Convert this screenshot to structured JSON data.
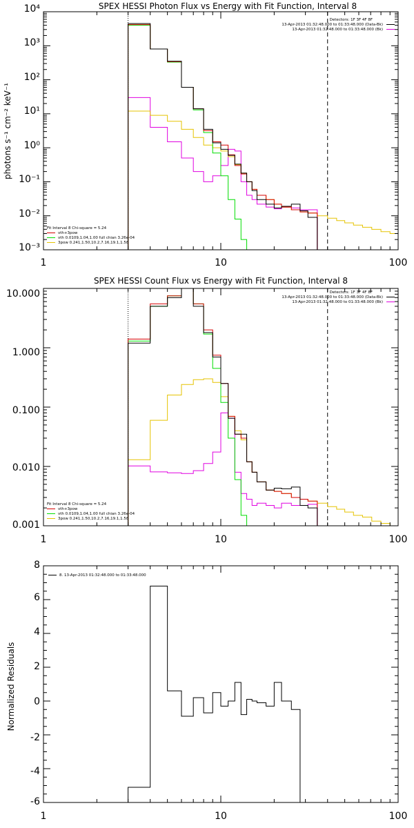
{
  "chart_data": [
    {
      "type": "line",
      "title": "SPEX HESSI Photon Flux vs Energy with Fit Function, Interval 8",
      "ylabel": "photons s⁻¹ cm⁻² keV⁻¹",
      "xscale": "log",
      "yscale": "log",
      "xlim": [
        1,
        100
      ],
      "ylim": [
        0.001,
        10000
      ],
      "xticks": [
        "1",
        "10",
        "100"
      ],
      "yticks": [
        "10⁻³",
        "10⁻²",
        "10⁻¹",
        "10⁰",
        "10¹",
        "10²",
        "10³",
        "10⁴"
      ],
      "vlines": [
        {
          "x": 3,
          "style": "dotted"
        },
        {
          "x": 40,
          "style": "dashed"
        }
      ],
      "header_lines": [
        "Detectors: 1F 3F 4F 8F",
        "13-Apr-2013 01:32:48.000 to 01:33:48.000 (Data-Bk)",
        "13-Apr-2013 01:32:48.000 to 01:33:48.000 (Bk)"
      ],
      "fit_lines": [
        "Fit Interval  8     Chi-square = 5.24",
        "vth+3pow",
        "vth 0.0109,1.04,1.00  full chian 3.26e-04",
        "3pow 0.241,1.50,10.2,7.16,19.1,1.58"
      ],
      "edges": [
        3,
        4,
        5,
        6,
        7,
        8,
        9,
        10,
        11,
        12,
        13,
        14,
        15,
        16,
        18,
        20,
        22,
        25,
        28,
        31,
        35,
        40,
        45,
        50,
        56,
        63,
        71,
        80,
        90,
        100
      ],
      "series": [
        {
          "name": "Data-Bk",
          "values": [
            4500,
            800,
            350,
            60,
            14,
            3.5,
            1.4,
            0.9,
            0.6,
            0.33,
            0.18,
            0.1,
            0.055,
            0.03,
            0.022,
            0.017,
            0.019,
            0.022,
            0.014,
            0.009
          ]
        },
        {
          "name": "vth+3pow",
          "values": [
            4200,
            800,
            340,
            60,
            14,
            3.2,
            1.5,
            1.2,
            0.62,
            0.3,
            0.17,
            0.1,
            0.06,
            0.04,
            0.03,
            0.022,
            0.018,
            0.015,
            0.013,
            0.012
          ]
        },
        {
          "name": "vth",
          "values": [
            4000,
            800,
            330,
            60,
            13,
            2.8,
            0.7,
            0.15,
            0.03,
            0.008,
            0.002
          ]
        },
        {
          "name": "3pow",
          "values": [
            12,
            9,
            6,
            3.5,
            2.0,
            1.2,
            1.0,
            0.8,
            0.55,
            0.32,
            0.18,
            0.1,
            0.06,
            0.04,
            0.03,
            0.022,
            0.018,
            0.015,
            0.013,
            0.012,
            0.01,
            0.0085,
            0.0072,
            0.0062,
            0.0053,
            0.0046,
            0.004,
            0.0034,
            0.003
          ]
        },
        {
          "name": "Bk",
          "values": [
            30,
            4,
            1.5,
            0.5,
            0.2,
            0.1,
            0.15,
            0.3,
            0.9,
            0.8,
            0.1,
            0.04,
            0.03,
            0.022,
            0.018,
            0.016,
            0.018,
            0.017,
            0.015,
            0.015
          ]
        }
      ],
      "colors": [
        "#000000",
        "#d40000",
        "#00dd00",
        "#e5c300",
        "#e000e0"
      ]
    },
    {
      "type": "line",
      "title": "SPEX HESSI Count Flux vs Energy with Fit Function, Interval 8",
      "xscale": "log",
      "yscale": "log",
      "xlim": [
        1,
        100
      ],
      "ylim": [
        0.001,
        10
      ],
      "xticks": [
        "1",
        "10",
        "100"
      ],
      "yticks": [
        "0.001",
        "0.010",
        "0.100",
        "1.000",
        "10.000"
      ],
      "vlines": [
        {
          "x": 3,
          "style": "dotted"
        },
        {
          "x": 40,
          "style": "dashed"
        }
      ],
      "header_lines": [
        "Detectors: 1F 3F 4F 8F",
        "13-Apr-2013 01:32:48.000 to 01:33:48.000 (Data-Bk)",
        "13-Apr-2013 01:32:48.000 to 01:33:48.000 (Bk)"
      ],
      "fit_lines": [
        "Fit Interval  8     Chi-square = 5.24",
        "vth+3pow",
        "vth 0.0109,1.04,1.00  full chian 3.26e-04",
        "3pow 0.241,1.50,10.2,7.16,19.1,1.58"
      ],
      "edges": [
        3,
        4,
        5,
        6,
        7,
        8,
        9,
        10,
        11,
        12,
        13,
        14,
        15,
        16,
        18,
        20,
        22,
        25,
        28,
        31,
        35,
        40,
        45,
        50,
        56,
        63,
        71,
        80,
        90,
        100
      ],
      "series": [
        {
          "name": "Data-Bk",
          "values": [
            1.2,
            5.0,
            7.0,
            10,
            5.0,
            1.8,
            0.7,
            0.25,
            0.065,
            0.035,
            0.035,
            0.012,
            0.008,
            0.0055,
            0.004,
            0.0043,
            0.0042,
            0.0045,
            0.0022,
            0.002
          ]
        },
        {
          "name": "vth+3pow",
          "values": [
            1.4,
            5.5,
            7.5,
            10,
            5.5,
            2.0,
            0.75,
            0.25,
            0.07,
            0.035,
            0.03,
            0.012,
            0.008,
            0.0055,
            0.004,
            0.0038,
            0.0035,
            0.003,
            0.0028,
            0.0026
          ]
        },
        {
          "name": "vth",
          "values": [
            1.3,
            5.0,
            7.5,
            10,
            5.5,
            1.7,
            0.45,
            0.12,
            0.03,
            0.006,
            0.0015
          ]
        },
        {
          "name": "3pow",
          "values": [
            0.013,
            0.06,
            0.16,
            0.24,
            0.29,
            0.3,
            0.26,
            0.15,
            0.07,
            0.04,
            0.028,
            0.012,
            0.008,
            0.0055,
            0.004,
            0.0038,
            0.0035,
            0.003,
            0.0028,
            0.0026,
            0.0024,
            0.0021,
            0.0019,
            0.0017,
            0.0015,
            0.0014,
            0.0012,
            0.0011,
            0.001
          ]
        },
        {
          "name": "Bk",
          "values": [
            0.0102,
            0.0081,
            0.0078,
            0.0076,
            0.0085,
            0.0112,
            0.0175,
            0.08,
            0.065,
            0.008,
            0.0035,
            0.0028,
            0.0022,
            0.0024,
            0.0022,
            0.002,
            0.0024,
            0.0022,
            0.0022,
            0.0023
          ]
        }
      ],
      "colors": [
        "#000000",
        "#d40000",
        "#00dd00",
        "#e5c300",
        "#e000e0"
      ]
    },
    {
      "type": "line",
      "ylabel": "Normalized Residuals",
      "xscale": "log",
      "yscale": "linear",
      "xlim": [
        1,
        100
      ],
      "ylim": [
        -6,
        8
      ],
      "xticks": [
        "1",
        "10",
        "100"
      ],
      "yticks": [
        "-6",
        "-4",
        "-2",
        "0",
        "2",
        "4",
        "6",
        "8"
      ],
      "legend": "8. 13-Apr-2013 01:32:48.000 to 01:33:48.000",
      "edges": [
        3,
        4,
        5,
        6,
        7,
        8,
        9,
        10,
        11,
        12,
        13,
        14,
        15,
        16,
        18,
        20,
        22,
        25,
        28,
        31,
        35,
        40
      ],
      "series": [
        {
          "values": [
            -5.1,
            6.8,
            0.6,
            -0.9,
            0.2,
            -0.7,
            0.5,
            -0.3,
            0.0,
            1.1,
            -0.8,
            0.1,
            0.0,
            -0.1,
            -0.3,
            1.1,
            0.0,
            -0.5,
            -6,
            -6,
            -6
          ]
        }
      ],
      "colors": [
        "#000000"
      ]
    }
  ]
}
